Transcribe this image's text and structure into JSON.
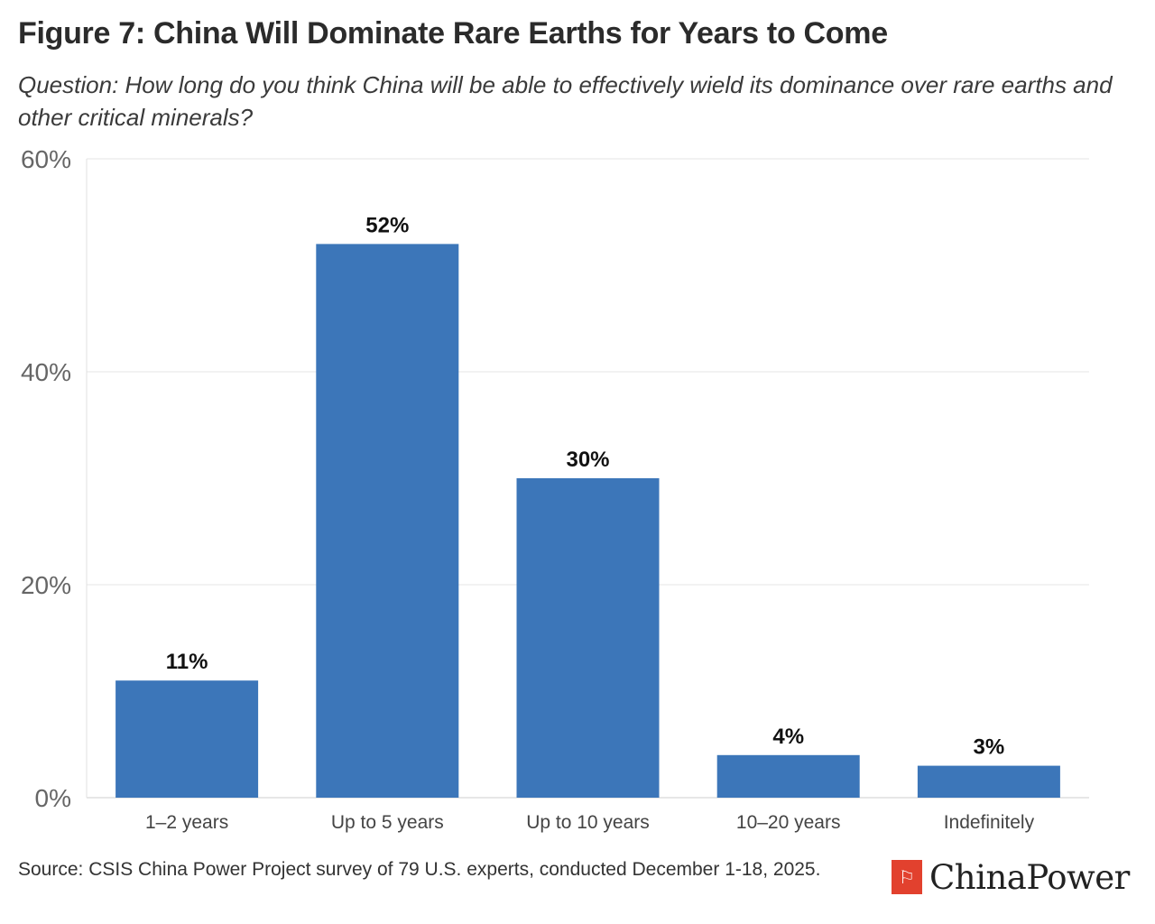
{
  "header": {
    "title": "Figure 7: China Will Dominate Rare Earths for Years to Come",
    "subtitle": "Question: How long do you think China will be able to effectively wield its dominance over rare earths and other critical minerals?"
  },
  "chart_data": {
    "type": "bar",
    "categories": [
      "1–2 years",
      "Up to 5 years",
      "Up to 10 years",
      "10–20 years",
      "Indefinitely"
    ],
    "values": [
      11,
      52,
      30,
      4,
      3
    ],
    "value_labels": [
      "11%",
      "52%",
      "30%",
      "4%",
      "3%"
    ],
    "ylim": [
      0,
      60
    ],
    "yticks": [
      0,
      20,
      40,
      60
    ],
    "ytick_labels": [
      "0%",
      "20%",
      "40%",
      "60%"
    ],
    "grid": true,
    "bar_color": "#3c76b9"
  },
  "footer": {
    "source": "Source: CSIS China Power Project survey of 79 U.S. experts, conducted December 1-18, 2025.",
    "brand": "ChinaPower",
    "brand_icon": "china-power-logo-icon",
    "brand_color": "#e2412e"
  }
}
